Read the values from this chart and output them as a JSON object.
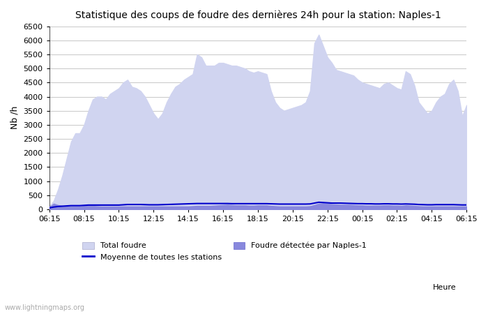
{
  "title": "Statistique des coups de foudre des dernières 24h pour la station: Naples-1",
  "xlabel": "Heure",
  "ylabel": "Nb /h",
  "ylim": [
    0,
    6500
  ],
  "yticks": [
    0,
    500,
    1000,
    1500,
    2000,
    2500,
    3000,
    3500,
    4000,
    4500,
    5000,
    5500,
    6000,
    6500
  ],
  "xtick_labels": [
    "06:15",
    "08:15",
    "10:15",
    "12:15",
    "14:15",
    "16:15",
    "18:15",
    "20:15",
    "22:15",
    "00:15",
    "02:15",
    "04:15",
    "06:15"
  ],
  "bg_color": "#ffffff",
  "plot_bg_color": "#ffffff",
  "grid_color": "#cccccc",
  "total_foudre_color": "#d0d4f0",
  "naples_color": "#8888dd",
  "mean_line_color": "#0000cc",
  "watermark": "www.lightningmaps.org",
  "total_foudre_values": [
    100,
    300,
    700,
    1200,
    1800,
    2400,
    2700,
    2700,
    3000,
    3500,
    3900,
    4000,
    4000,
    3900,
    4100,
    4200,
    4300,
    4500,
    4600,
    4350,
    4300,
    4200,
    4000,
    3700,
    3400,
    3200,
    3400,
    3800,
    4100,
    4350,
    4450,
    4600,
    4700,
    4800,
    5500,
    5400,
    5100,
    5100,
    5100,
    5200,
    5200,
    5150,
    5100,
    5100,
    5050,
    5000,
    4900,
    4850,
    4900,
    4850,
    4800,
    4200,
    3800,
    3600,
    3500,
    3550,
    3600,
    3650,
    3700,
    3800,
    4200,
    5900,
    6200,
    5800,
    5400,
    5200,
    4950,
    4900,
    4850,
    4800,
    4750,
    4600,
    4500,
    4450,
    4400,
    4350,
    4300,
    4450,
    4500,
    4400,
    4300,
    4250,
    4900,
    4800,
    4400,
    3800,
    3600,
    3400,
    3500,
    3800,
    4000,
    4100,
    4450,
    4600,
    4200,
    3300,
    3700
  ],
  "naples_values": [
    80,
    200,
    150,
    120,
    100,
    100,
    100,
    100,
    120,
    130,
    120,
    110,
    100,
    100,
    100,
    100,
    100,
    100,
    100,
    100,
    100,
    100,
    100,
    100,
    100,
    100,
    100,
    100,
    100,
    100,
    100,
    100,
    100,
    110,
    120,
    120,
    120,
    120,
    130,
    140,
    150,
    160,
    150,
    140,
    140,
    140,
    130,
    130,
    140,
    140,
    140,
    120,
    110,
    100,
    100,
    100,
    100,
    100,
    100,
    100,
    110,
    150,
    200,
    210,
    200,
    180,
    170,
    160,
    160,
    160,
    150,
    140,
    140,
    130,
    130,
    130,
    130,
    140,
    140,
    130,
    130,
    120,
    140,
    130,
    120,
    110,
    100,
    100,
    100,
    100,
    100,
    100,
    100,
    100,
    100,
    100,
    100
  ],
  "mean_values": [
    50,
    80,
    100,
    110,
    120,
    130,
    130,
    130,
    140,
    150,
    150,
    150,
    150,
    150,
    150,
    150,
    150,
    160,
    170,
    170,
    170,
    170,
    165,
    160,
    160,
    160,
    165,
    170,
    175,
    180,
    185,
    190,
    195,
    200,
    205,
    205,
    205,
    205,
    205,
    205,
    205,
    205,
    200,
    200,
    200,
    200,
    200,
    200,
    200,
    200,
    200,
    195,
    190,
    185,
    185,
    185,
    185,
    185,
    185,
    185,
    190,
    220,
    250,
    240,
    230,
    220,
    220,
    220,
    215,
    210,
    205,
    200,
    200,
    195,
    195,
    190,
    190,
    195,
    195,
    190,
    190,
    185,
    190,
    185,
    180,
    170,
    165,
    160,
    160,
    165,
    165,
    165,
    165,
    165,
    160,
    155,
    155
  ]
}
